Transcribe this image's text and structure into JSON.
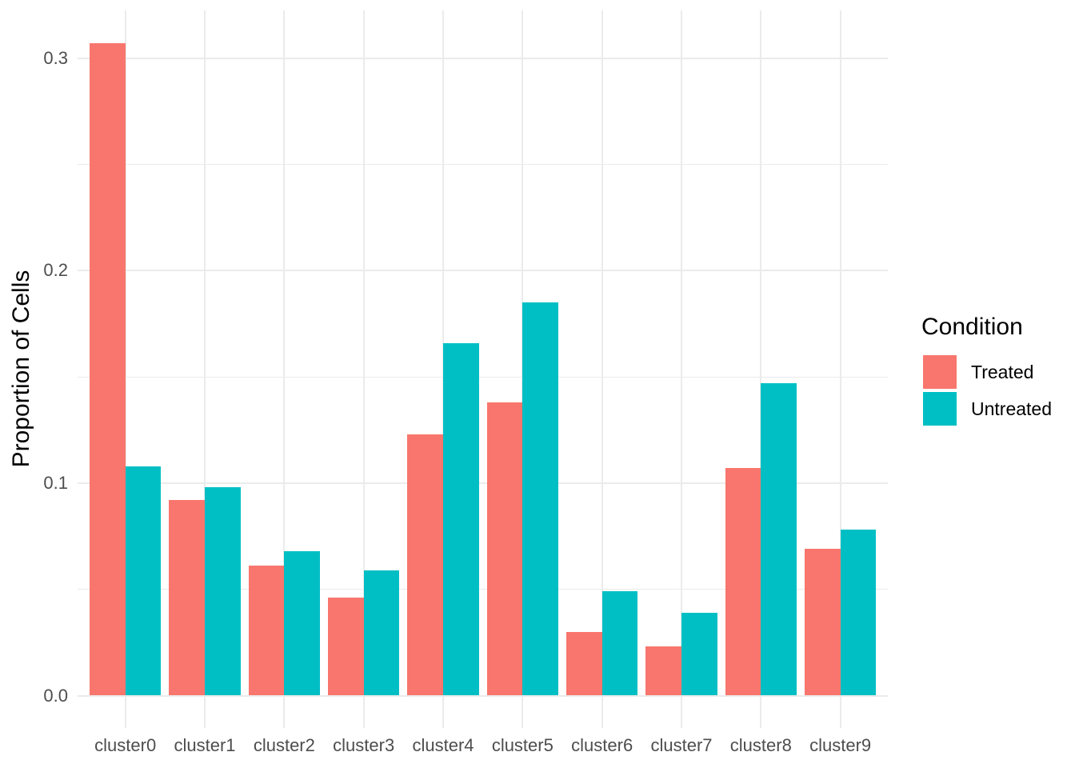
{
  "chart_data": {
    "type": "bar",
    "title": "",
    "xlabel": "",
    "ylabel": "Proportion of Cells",
    "categories": [
      "cluster0",
      "cluster1",
      "cluster2",
      "cluster3",
      "cluster4",
      "cluster5",
      "cluster6",
      "cluster7",
      "cluster8",
      "cluster9"
    ],
    "series": [
      {
        "name": "Treated",
        "color": "#F8766D",
        "values": [
          0.307,
          0.092,
          0.061,
          0.046,
          0.123,
          0.138,
          0.03,
          0.023,
          0.107,
          0.069
        ]
      },
      {
        "name": "Untreated",
        "color": "#00BFC4",
        "values": [
          0.108,
          0.098,
          0.068,
          0.059,
          0.166,
          0.185,
          0.049,
          0.039,
          0.147,
          0.078
        ]
      }
    ],
    "ylim": [
      -0.015,
      0.3225
    ],
    "yticks_major": [
      0,
      0.1,
      0.2,
      0.3
    ],
    "ytick_labels": [
      "0.0",
      "0.1",
      "0.2",
      "0.3"
    ],
    "yticks_minor": [
      0.05,
      0.15,
      0.25
    ],
    "grid": true,
    "legend_position": "right",
    "legend_title": "Condition",
    "bar_layout": "dodged"
  },
  "legend": {
    "title": "Condition",
    "items": [
      {
        "label": "Treated",
        "color": "#F8766D"
      },
      {
        "label": "Untreated",
        "color": "#00BFC4"
      }
    ]
  },
  "colors": {
    "background": "#FFFFFF",
    "grid": "#EBEBEB",
    "tick_text": "#4D4D4D",
    "title_text": "#000000",
    "treated": "#F8766D",
    "untreated": "#00BFC4"
  }
}
